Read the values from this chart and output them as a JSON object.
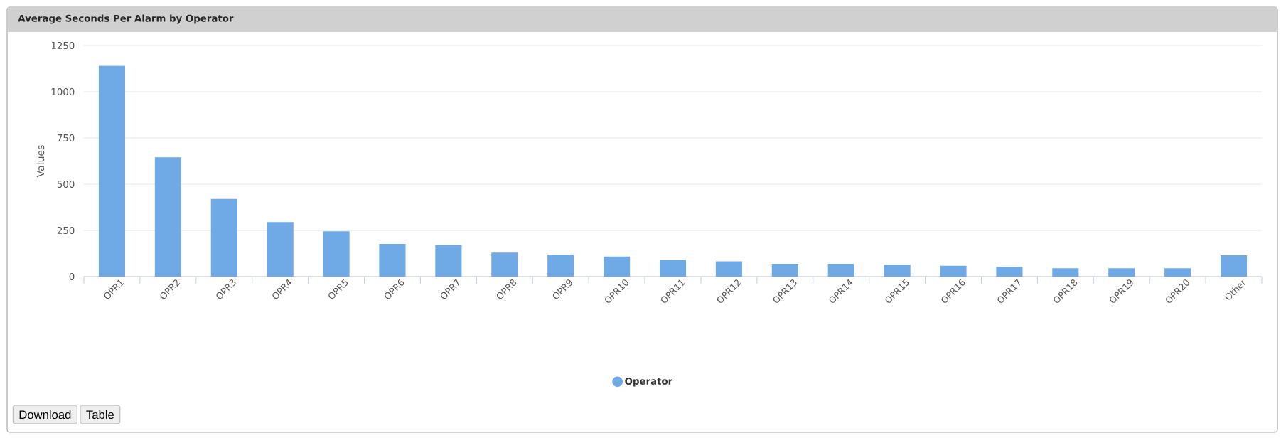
{
  "chart_data": {
    "type": "bar",
    "title": "Average Seconds Per Alarm by Operator",
    "ylabel": "Values",
    "categories": [
      "OPR1",
      "OPR2",
      "OPR3",
      "OPR4",
      "OPR5",
      "OPR6",
      "OPR7",
      "OPR8",
      "OPR9",
      "OPR10",
      "OPR11",
      "OPR12",
      "OPR13",
      "OPR14",
      "OPR15",
      "OPR16",
      "OPR17",
      "OPR18",
      "OPR19",
      "OPR20",
      "Other"
    ],
    "series": [
      {
        "name": "Operator",
        "color": "#6fa9e6",
        "values": [
          1140,
          645,
          420,
          295,
          245,
          177,
          170,
          130,
          118,
          109,
          89,
          83,
          69,
          69,
          64,
          59,
          53,
          45,
          45,
          45,
          115
        ]
      }
    ],
    "ylim": [
      0,
      1250
    ],
    "yticks": [
      0,
      250,
      500,
      750,
      1000,
      1250
    ],
    "grid": "y",
    "legend": "bottom",
    "annotations": [
      "Download",
      "Table"
    ]
  }
}
